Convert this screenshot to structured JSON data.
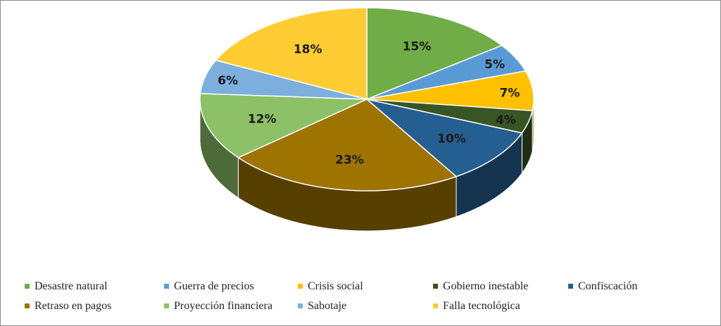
{
  "chart_data": {
    "type": "pie",
    "title": "",
    "slices": [
      {
        "name": "Desastre natural",
        "value": 15,
        "label": "15%",
        "color": "#70ad47"
      },
      {
        "name": "Guerra de precios",
        "value": 5,
        "label": "5%",
        "color": "#5b9bd5"
      },
      {
        "name": "Crisis social",
        "value": 7,
        "label": "7%",
        "color": "#ffc000"
      },
      {
        "name": "Gobierno inestable",
        "value": 4,
        "label": "4%",
        "color": "#375623"
      },
      {
        "name": "Confiscación",
        "value": 10,
        "label": "10%",
        "color": "#255e91"
      },
      {
        "name": "Retraso en pagos",
        "value": 23,
        "label": "23%",
        "color": "#9e7300"
      },
      {
        "name": "Proyección financiera",
        "value": 12,
        "label": "12%",
        "color": "#8cc168"
      },
      {
        "name": "Sabotaje",
        "value": 6,
        "label": "6%",
        "color": "#7cafdd"
      },
      {
        "name": "Falla tecnológica",
        "value": 18,
        "label": "18%",
        "color": "#ffcd33"
      }
    ],
    "legend_position": "bottom",
    "style": "3d"
  }
}
